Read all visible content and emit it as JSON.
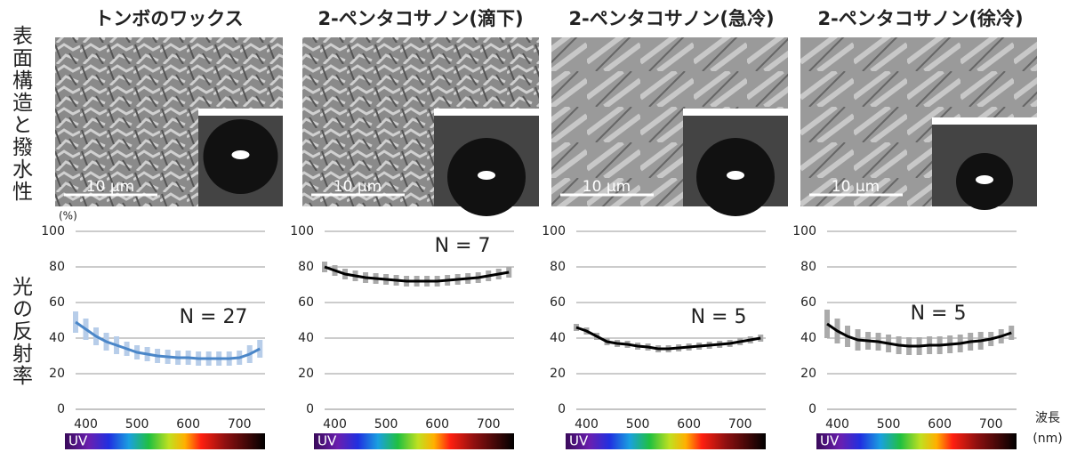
{
  "labels": {
    "row_top": "表面構造と撥水性",
    "row_bottom": "光の反射率",
    "y_unit": "(%)",
    "x_label": "波長",
    "x_unit": "(nm)",
    "uv": "UV",
    "scale_bar": "10 μm"
  },
  "chart_data": [
    {
      "type": "line",
      "title": "トンボのワックス",
      "annotation": "N = 27",
      "x": [
        380,
        400,
        420,
        440,
        460,
        480,
        500,
        520,
        540,
        560,
        580,
        600,
        620,
        640,
        660,
        680,
        700,
        720,
        740
      ],
      "series": [
        {
          "color": "#4a86c8",
          "error_color": "#b7cde9",
          "values": [
            49,
            45,
            41,
            38,
            36,
            34,
            32,
            31,
            30,
            29.5,
            29,
            29,
            28.5,
            28.5,
            28.5,
            28.5,
            29,
            31,
            34
          ],
          "errors": [
            6,
            6,
            5,
            5,
            5,
            4,
            4,
            4,
            4,
            4,
            4,
            4,
            4,
            4,
            4,
            4,
            4,
            5,
            5
          ]
        }
      ],
      "xlim": [
        380,
        750
      ],
      "xticks": [
        400,
        500,
        600,
        700
      ],
      "ylim": [
        0,
        100
      ],
      "yticks": [
        0,
        20,
        40,
        60,
        80,
        100
      ],
      "grid": true
    },
    {
      "type": "line",
      "title": "2-ペンタコサノン(滴下)",
      "annotation": "N = 7",
      "x": [
        380,
        400,
        420,
        440,
        460,
        480,
        500,
        520,
        540,
        560,
        580,
        600,
        620,
        640,
        660,
        680,
        700,
        720,
        740
      ],
      "series": [
        {
          "color": "#000000",
          "error_color": "#aaaaaa",
          "values": [
            80,
            78,
            76,
            75,
            74,
            73.5,
            73,
            72.5,
            72,
            72,
            72,
            72,
            72.5,
            73,
            73.5,
            74,
            75,
            76,
            77
          ],
          "errors": [
            3,
            3,
            3,
            3,
            3,
            3,
            3,
            3,
            3,
            3,
            3,
            3,
            3,
            3,
            3,
            3,
            3,
            3,
            3
          ]
        }
      ],
      "xlim": [
        380,
        750
      ],
      "xticks": [
        400,
        500,
        600,
        700
      ],
      "ylim": [
        0,
        100
      ],
      "yticks": [
        0,
        20,
        40,
        60,
        80,
        100
      ],
      "grid": true
    },
    {
      "type": "line",
      "title": "2-ペンタコサノン(急冷)",
      "annotation": "N = 5",
      "x": [
        380,
        400,
        420,
        440,
        460,
        480,
        500,
        520,
        540,
        560,
        580,
        600,
        620,
        640,
        660,
        680,
        700,
        720,
        740
      ],
      "series": [
        {
          "color": "#000000",
          "error_color": "#aaaaaa",
          "values": [
            46,
            44,
            41,
            38,
            37,
            36.5,
            35.5,
            35,
            34,
            34,
            34.5,
            35,
            35.5,
            36,
            36.5,
            37,
            38,
            39,
            40
          ],
          "errors": [
            2,
            2,
            2,
            2,
            2,
            2,
            2,
            2,
            2,
            2,
            2,
            2,
            2,
            2,
            2,
            2,
            2,
            2,
            2
          ]
        }
      ],
      "xlim": [
        380,
        750
      ],
      "xticks": [
        400,
        500,
        600,
        700
      ],
      "ylim": [
        0,
        100
      ],
      "yticks": [
        0,
        20,
        40,
        60,
        80,
        100
      ],
      "grid": true
    },
    {
      "type": "line",
      "title": "2-ペンタコサノン(徐冷)",
      "annotation": "N = 5",
      "x": [
        380,
        400,
        420,
        440,
        460,
        480,
        500,
        520,
        540,
        560,
        580,
        600,
        620,
        640,
        660,
        680,
        700,
        720,
        740
      ],
      "series": [
        {
          "color": "#000000",
          "error_color": "#aaaaaa",
          "values": [
            48,
            44,
            41,
            39,
            38.5,
            38,
            37,
            36,
            35.5,
            35.5,
            36,
            36,
            36.5,
            37,
            38,
            38.5,
            39.5,
            41,
            43
          ],
          "errors": [
            8,
            7,
            6,
            6,
            5,
            5,
            5,
            5,
            5,
            5,
            5,
            5,
            5,
            5,
            5,
            5,
            4,
            4,
            4
          ]
        }
      ],
      "xlim": [
        380,
        750
      ],
      "xticks": [
        400,
        500,
        600,
        700
      ],
      "ylim": [
        0,
        100
      ],
      "yticks": [
        0,
        20,
        40,
        60,
        80,
        100
      ],
      "grid": true
    }
  ]
}
